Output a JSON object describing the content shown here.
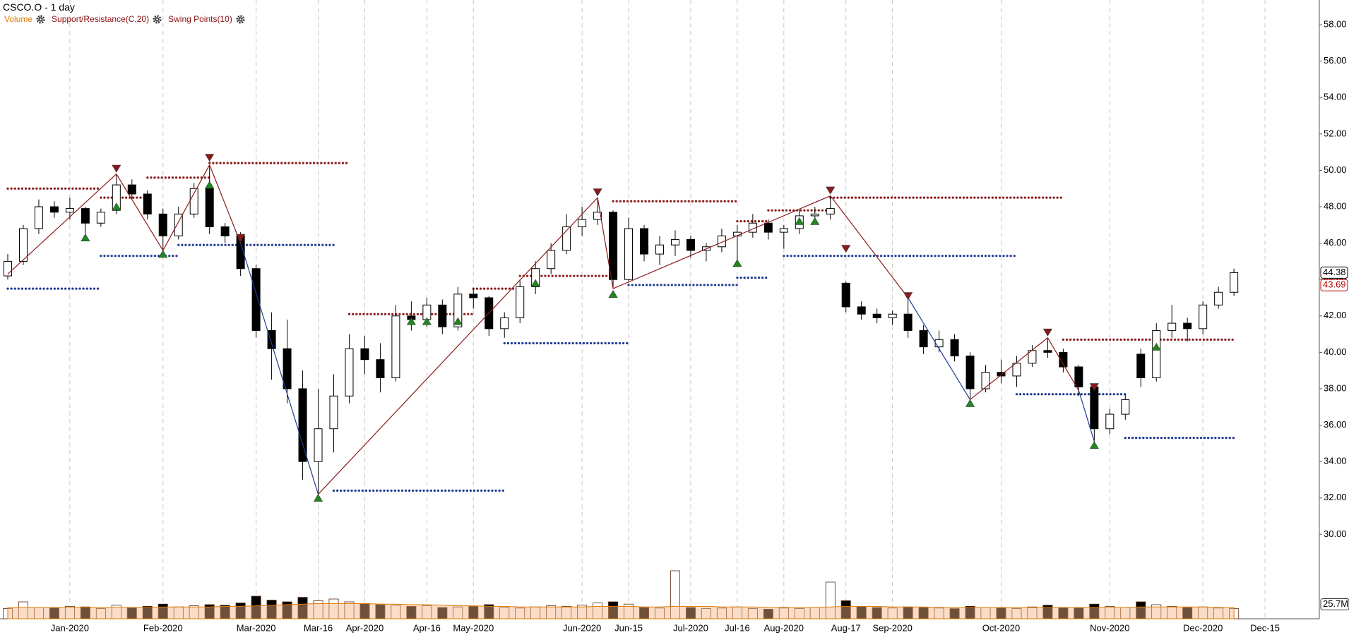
{
  "header": {
    "title": "CSCO.O - 1 day",
    "indicators": [
      {
        "label": "Volume",
        "color": "#e07b00"
      },
      {
        "label": "Support/Resistance(C,20)",
        "color": "#8b1010"
      },
      {
        "label": "Swing Points(10)",
        "color": "#8b1010"
      }
    ]
  },
  "chart_data": {
    "type": "candlestick",
    "categories": [
      null,
      null,
      null,
      null,
      "Jan-2020",
      null,
      null,
      null,
      null,
      null,
      "Feb-2020",
      null,
      null,
      null,
      null,
      null,
      "Mar-2020",
      null,
      null,
      null,
      "Mar-16",
      null,
      null,
      "Apr-2020",
      null,
      null,
      null,
      "Apr-16",
      null,
      null,
      "May-2020",
      null,
      null,
      null,
      null,
      null,
      null,
      "Jun-2020",
      null,
      null,
      "Jun-15",
      null,
      null,
      null,
      "Jul-2020",
      null,
      null,
      "Jul-16",
      null,
      null,
      "Aug-2020",
      null,
      null,
      null,
      "Aug-17",
      null,
      null,
      "Sep-2020",
      null,
      null,
      null,
      null,
      null,
      null,
      "Oct-2020",
      null,
      null,
      null,
      null,
      null,
      null,
      "Nov-2020",
      null,
      null,
      null,
      null,
      null,
      "Dec-2020",
      null,
      null,
      null,
      "Dec-15",
      null,
      null,
      null
    ],
    "open": [
      44.2,
      45.0,
      46.8,
      48.0,
      47.7,
      47.9,
      47.1,
      47.8,
      49.2,
      48.7,
      47.6,
      46.4,
      47.6,
      49.0,
      46.9,
      46.4,
      44.6,
      41.2,
      40.2,
      38.0,
      34.0,
      35.8,
      37.6,
      40.2,
      39.6,
      38.6,
      42.0,
      41.8,
      42.6,
      41.4,
      43.2,
      43.0,
      41.3,
      41.9,
      43.6,
      44.6,
      45.6,
      46.9,
      47.3,
      47.7,
      44.0,
      46.8,
      45.4,
      45.9,
      46.2,
      45.6,
      45.8,
      46.4,
      46.6,
      47.1,
      46.6,
      46.8,
      47.5,
      47.6,
      43.8,
      42.5,
      42.1,
      41.9,
      42.1,
      41.2,
      40.3,
      40.7,
      39.8,
      38.0,
      38.9,
      38.7,
      39.4,
      40.1,
      40.0,
      39.2,
      38.1,
      35.8,
      36.6,
      39.9,
      38.6,
      41.2,
      41.6,
      41.3,
      42.6,
      43.3,
      null,
      null,
      null,
      null,
      null
    ],
    "high": [
      45.4,
      47.0,
      48.4,
      48.3,
      48.5,
      48.0,
      47.9,
      49.8,
      49.5,
      48.9,
      47.9,
      48.0,
      49.3,
      50.3,
      47.1,
      46.6,
      44.8,
      42.2,
      41.8,
      39.0,
      38.0,
      38.8,
      41.0,
      40.9,
      40.5,
      42.6,
      42.8,
      43.0,
      42.9,
      43.6,
      43.5,
      43.1,
      42.2,
      44.0,
      45.0,
      46.0,
      47.6,
      48.0,
      48.5,
      47.8,
      47.4,
      47.0,
      46.4,
      46.7,
      46.4,
      46.0,
      46.8,
      47.0,
      47.6,
      47.3,
      47.0,
      47.8,
      48.0,
      48.6,
      43.9,
      42.8,
      42.4,
      42.3,
      42.9,
      41.5,
      41.2,
      41.0,
      40.0,
      39.3,
      39.6,
      39.8,
      40.4,
      40.8,
      40.2,
      39.3,
      38.2,
      36.9,
      37.7,
      40.2,
      41.6,
      42.6,
      41.9,
      42.8,
      43.6,
      44.6,
      null,
      null,
      null,
      null,
      null
    ],
    "low": [
      44.0,
      44.8,
      46.5,
      47.4,
      47.3,
      46.5,
      46.9,
      47.6,
      48.4,
      47.3,
      45.6,
      46.2,
      47.4,
      46.5,
      46.0,
      44.2,
      40.8,
      38.5,
      37.2,
      33.0,
      32.2,
      34.5,
      37.2,
      38.8,
      37.8,
      38.4,
      41.2,
      41.4,
      41.0,
      41.2,
      42.4,
      40.9,
      40.8,
      41.6,
      43.2,
      44.3,
      45.4,
      46.4,
      47.0,
      43.5,
      43.9,
      45.0,
      44.8,
      45.3,
      45.2,
      45.0,
      45.5,
      45.1,
      46.3,
      46.2,
      45.7,
      46.5,
      47.2,
      47.3,
      42.2,
      41.8,
      41.6,
      41.5,
      40.8,
      39.9,
      40.0,
      39.5,
      37.4,
      37.8,
      38.3,
      38.1,
      39.2,
      39.7,
      38.9,
      37.6,
      35.1,
      35.5,
      36.3,
      38.1,
      38.4,
      40.8,
      40.6,
      41.0,
      42.4,
      43.1,
      null,
      null,
      null,
      null,
      null
    ],
    "close": [
      45.0,
      46.8,
      48.0,
      47.7,
      47.9,
      47.1,
      47.7,
      49.2,
      48.7,
      47.6,
      46.4,
      47.6,
      49.0,
      46.9,
      46.4,
      44.6,
      41.2,
      40.2,
      38.0,
      34.0,
      35.8,
      37.6,
      40.2,
      39.6,
      38.6,
      42.0,
      41.8,
      42.6,
      41.4,
      43.2,
      43.0,
      41.3,
      41.9,
      43.6,
      44.6,
      45.6,
      46.9,
      47.3,
      47.7,
      44.0,
      46.8,
      45.4,
      45.9,
      46.2,
      45.6,
      45.8,
      46.4,
      46.6,
      47.1,
      46.6,
      46.8,
      47.5,
      47.6,
      47.9,
      42.5,
      42.1,
      41.9,
      42.1,
      41.2,
      40.3,
      40.7,
      39.8,
      38.0,
      38.9,
      38.7,
      39.4,
      40.1,
      40.0,
      39.2,
      38.1,
      35.8,
      36.6,
      37.4,
      38.6,
      41.2,
      41.6,
      41.3,
      42.6,
      43.3,
      44.38,
      null,
      null,
      null,
      null,
      null
    ],
    "up_color": "#ffffff",
    "down_color": "#000000",
    "ylim": [
      25.36,
      59.36
    ],
    "yticks": [
      {
        "value": 30,
        "label": "30.00"
      },
      {
        "value": 32,
        "label": "32.00"
      },
      {
        "value": 34,
        "label": "34.00"
      },
      {
        "value": 36,
        "label": "36.00"
      },
      {
        "value": 38,
        "label": "38.00"
      },
      {
        "value": 40,
        "label": "40.00"
      },
      {
        "value": 42,
        "label": "42.00"
      },
      {
        "value": 44,
        "label": "44.00"
      },
      {
        "value": 46,
        "label": "46.00"
      },
      {
        "value": 48,
        "label": "48.00"
      },
      {
        "value": 50,
        "label": "50.00"
      },
      {
        "value": 52,
        "label": "52.00"
      },
      {
        "value": 54,
        "label": "54.00"
      },
      {
        "value": 56,
        "label": "56.00"
      },
      {
        "value": 58,
        "label": "58.00"
      }
    ],
    "price_markers": [
      {
        "value": 43.69,
        "label": "43.69",
        "color": "#c00000"
      },
      {
        "value": 44.38,
        "label": "44.38",
        "color": "#000000"
      }
    ]
  },
  "volume": {
    "values": [
      18,
      30,
      20,
      19,
      22,
      21,
      18,
      24,
      20,
      22,
      26,
      21,
      23,
      25,
      24,
      28,
      40,
      33,
      30,
      38,
      32,
      35,
      30,
      27,
      25,
      24,
      22,
      23,
      20,
      21,
      22,
      25,
      20,
      19,
      21,
      23,
      22,
      24,
      28,
      30,
      26,
      20,
      19,
      85,
      20,
      18,
      19,
      21,
      18,
      17,
      19,
      18,
      20,
      65,
      32,
      22,
      20,
      19,
      21,
      20,
      19,
      18,
      22,
      20,
      19,
      18,
      21,
      24,
      20,
      19,
      26,
      22,
      20,
      30,
      25,
      22,
      20,
      21,
      19,
      18,
      null,
      null,
      null,
      null,
      null
    ],
    "average": [
      20,
      20,
      20,
      20,
      20,
      20,
      20,
      20,
      20,
      20,
      21,
      21,
      21,
      21,
      22,
      22,
      23,
      24,
      25,
      26,
      27,
      27,
      27,
      27,
      26,
      26,
      25,
      25,
      24,
      23,
      23,
      22,
      22,
      21,
      21,
      21,
      21,
      21,
      22,
      22,
      22,
      21,
      21,
      22,
      22,
      22,
      21,
      21,
      21,
      20,
      20,
      20,
      20,
      21,
      22,
      22,
      22,
      21,
      21,
      21,
      20,
      20,
      20,
      20,
      20,
      20,
      20,
      20,
      20,
      20,
      20,
      20,
      20,
      21,
      21,
      21,
      21,
      21,
      20,
      20,
      null,
      null,
      null,
      null,
      null
    ],
    "vlim": [
      0,
      125
    ],
    "average_color": "#f4b183",
    "marker": {
      "value": 25.7,
      "label": "25.7M"
    }
  },
  "support_resistance": {
    "resistance_color": "#8b1a1a",
    "support_color": "#1f3a93",
    "resistance": [
      {
        "level": 49.0,
        "from": 0,
        "to": 6
      },
      {
        "level": 48.5,
        "from": 6,
        "to": 9
      },
      {
        "level": 49.6,
        "from": 9,
        "to": 13
      },
      {
        "level": 50.4,
        "from": 13,
        "to": 22
      },
      {
        "level": 42.1,
        "from": 22,
        "to": 30
      },
      {
        "level": 43.5,
        "from": 30,
        "to": 33
      },
      {
        "level": 44.2,
        "from": 33,
        "to": 39
      },
      {
        "level": 48.3,
        "from": 39,
        "to": 47
      },
      {
        "level": 47.2,
        "from": 47,
        "to": 49
      },
      {
        "level": 47.8,
        "from": 49,
        "to": 53
      },
      {
        "level": 48.5,
        "from": 53,
        "to": 68
      },
      {
        "level": 40.7,
        "from": 68,
        "to": 79
      }
    ],
    "support": [
      {
        "level": 43.5,
        "from": 0,
        "to": 6
      },
      {
        "level": 45.3,
        "from": 6,
        "to": 11
      },
      {
        "level": 45.9,
        "from": 11,
        "to": 21
      },
      {
        "level": 32.4,
        "from": 21,
        "to": 32
      },
      {
        "level": 40.5,
        "from": 32,
        "to": 40
      },
      {
        "level": 43.7,
        "from": 40,
        "to": 47
      },
      {
        "level": 44.1,
        "from": 47,
        "to": 49
      },
      {
        "level": 45.3,
        "from": 50,
        "to": 65
      },
      {
        "level": 37.7,
        "from": 65,
        "to": 72
      },
      {
        "level": 35.3,
        "from": 72,
        "to": 79
      }
    ]
  },
  "swing_points": {
    "zigzag": {
      "points": [
        [
          0,
          44.3
        ],
        [
          7,
          49.8
        ],
        [
          10,
          45.6
        ],
        [
          13,
          50.3
        ],
        [
          15,
          46.0
        ],
        [
          20,
          32.2
        ],
        [
          38,
          48.5
        ],
        [
          39,
          43.5
        ],
        [
          53,
          48.6
        ],
        [
          58,
          43.0
        ],
        [
          62,
          37.4
        ],
        [
          67,
          40.8
        ],
        [
          69,
          37.9
        ],
        [
          70,
          35.1
        ]
      ],
      "colors": [
        "#8b1a1a",
        "#8b1a1a",
        "#8b1a1a",
        "#8b1a1a",
        "#1f3a93",
        "#8b1a1a",
        "#8b1a1a",
        "#8b1a1a",
        "#8b1a1a",
        "#1f3a93",
        "#8b1a1a",
        "#8b1a1a",
        "#1f3a93"
      ]
    },
    "highs": [
      [
        7,
        49.9
      ],
      [
        13,
        50.5
      ],
      [
        15,
        46.1
      ],
      [
        38,
        48.6
      ],
      [
        53,
        48.7
      ],
      [
        54,
        45.5
      ],
      [
        58,
        42.9
      ],
      [
        67,
        40.9
      ],
      [
        70,
        37.9
      ]
    ],
    "lows": [
      [
        5,
        46.5
      ],
      [
        7,
        48.2
      ],
      [
        10,
        45.6
      ],
      [
        13,
        49.4
      ],
      [
        20,
        32.2
      ],
      [
        26,
        41.9
      ],
      [
        27,
        41.9
      ],
      [
        29,
        41.9
      ],
      [
        34,
        44.0
      ],
      [
        39,
        43.4
      ],
      [
        47,
        45.1
      ],
      [
        51,
        47.4
      ],
      [
        52,
        47.4
      ],
      [
        62,
        37.4
      ],
      [
        70,
        35.1
      ],
      [
        74,
        40.5
      ]
    ],
    "high_color": "#8b1a1a",
    "low_color": "#1e8a1e"
  }
}
